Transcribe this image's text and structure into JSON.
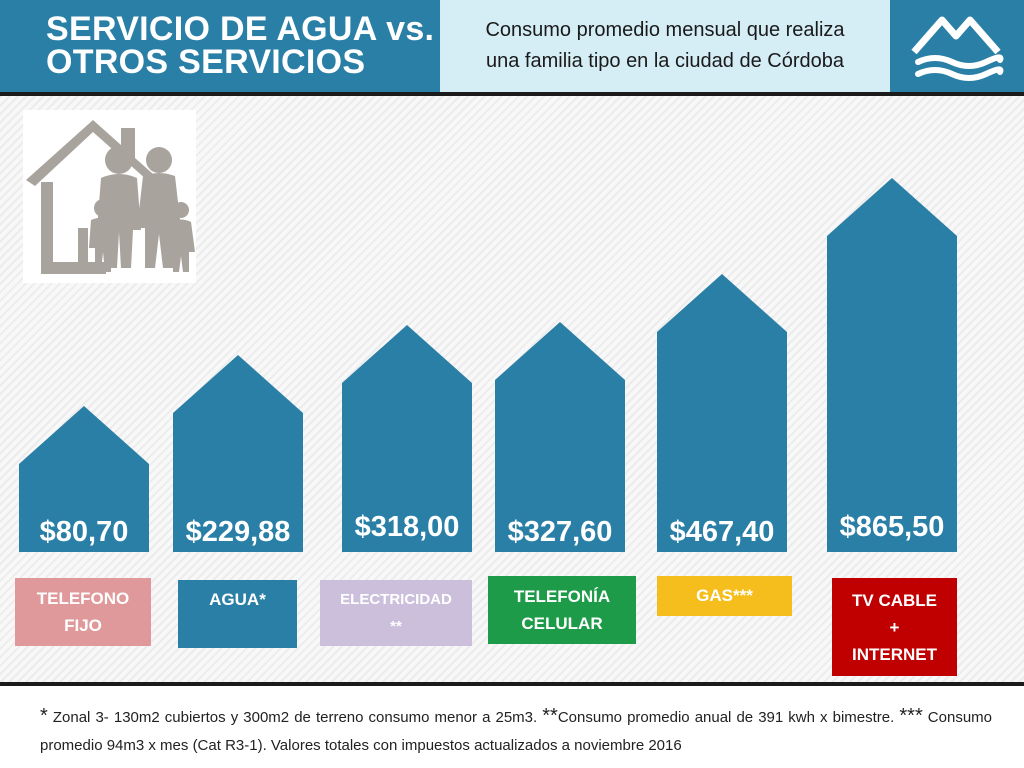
{
  "header": {
    "title_line1": "SERVICIO DE AGUA vs.",
    "title_line2": "OTROS SERVICIOS",
    "subtitle_line1": "Consumo promedio mensual que realiza",
    "subtitle_line2": "una familia tipo en la ciudad de Córdoba",
    "logo_icon": "water-waves-logo-icon"
  },
  "family_icon": "family-house-icon",
  "colors": {
    "bar": "#2a7fa6",
    "title_bg": "#2a7fa6",
    "subtitle_bg": "#d5edf5"
  },
  "chart_data": {
    "type": "bar",
    "categories": [
      "TELEFONO FIJO",
      "AGUA*",
      "ELECTRICIDAD **",
      "TELEFONÍA CELULAR",
      "GAS***",
      "TV CABLE + INTERNET"
    ],
    "values": [
      80.7,
      229.88,
      318.0,
      327.6,
      467.4,
      865.5
    ],
    "value_labels": [
      "$80,70",
      "$229,88",
      "$318,00",
      "$327,60",
      "$467,40",
      "$865,50"
    ],
    "category_label_lines": [
      [
        "TELEFONO",
        "FIJO"
      ],
      [
        "AGUA*"
      ],
      [
        "ELECTRICIDAD",
        "**"
      ],
      [
        "TELEFONÍA",
        "CELULAR"
      ],
      [
        "GAS***"
      ],
      [
        "TV CABLE",
        "+",
        "INTERNET"
      ]
    ],
    "category_colors": [
      "#e0999a",
      "#2a7fa6",
      "#cbbfdb",
      "#1e9b48",
      "#f5be1c",
      "#c00000"
    ],
    "category_text_colors": [
      "#ffffff",
      "#ffffff",
      "#ffffff",
      "#ffffff",
      "#ffffff",
      "#ffffff"
    ],
    "bar_shape": "house",
    "title": "",
    "xlabel": "",
    "ylabel": "",
    "grid": false
  },
  "footnote": {
    "mark1": "*",
    "text1": " Zonal 3- 130m2 cubiertos y 300m2 de terreno consumo menor a 25m3. ",
    "mark2": "**",
    "text2": "Consumo promedio anual de 391 kwh x bimestre. ",
    "mark3": "***",
    "text3": " Consumo promedio 94m3 x mes (Cat R3-1). Valores totales con impuestos actualizados a noviembre 2016"
  }
}
